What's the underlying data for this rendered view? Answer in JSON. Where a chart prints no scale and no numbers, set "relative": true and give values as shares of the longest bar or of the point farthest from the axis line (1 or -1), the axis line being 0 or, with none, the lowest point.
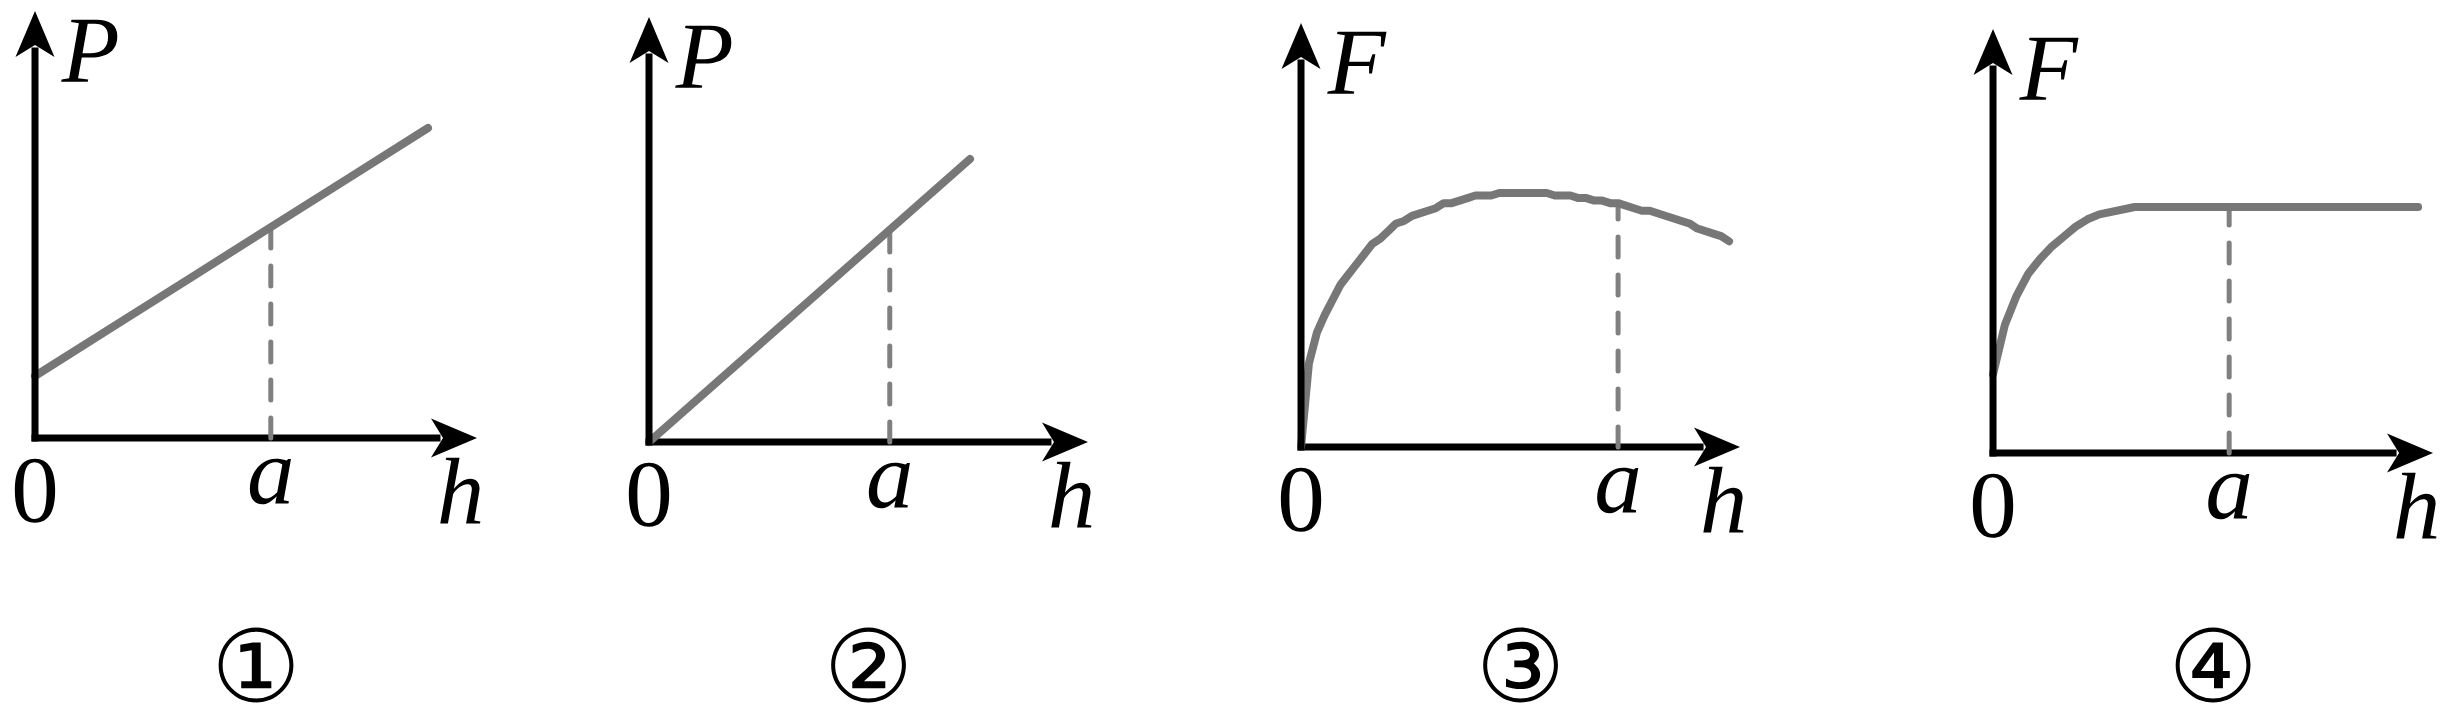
{
  "chart_data": [
    {
      "type": "line",
      "title": "①",
      "xlabel": "h",
      "ylabel": "P",
      "relative": true,
      "categories": [
        "0",
        null,
        null,
        "a",
        null,
        null
      ],
      "ref_lines": [
        {
          "axis": "x",
          "value": "a",
          "color": "#808080",
          "line_style": "dashed"
        }
      ],
      "color": "#777777",
      "values": [
        0.2,
        0.36,
        0.52,
        0.68,
        0.84,
        1
      ]
    },
    {
      "type": "line",
      "title": "②",
      "xlabel": "h",
      "ylabel": "P",
      "relative": true,
      "categories": [
        "0",
        null,
        null,
        "a",
        null
      ],
      "ref_lines": [
        {
          "axis": "x",
          "value": "a",
          "color": "#808080",
          "line_style": "dashed"
        }
      ],
      "color": "#777777",
      "values": [
        0,
        0.25,
        0.5,
        0.75,
        1
      ]
    },
    {
      "type": "line",
      "title": "③",
      "xlabel": "h",
      "ylabel": "F",
      "relative": true,
      "categories": [
        "0",
        null,
        null,
        null,
        null,
        null,
        null,
        null,
        null,
        null,
        null,
        null,
        null,
        null,
        null,
        null,
        null,
        null,
        null,
        null,
        null,
        null,
        null,
        null,
        null,
        null,
        null,
        null,
        null,
        null,
        null,
        null,
        null,
        null,
        null,
        null,
        null,
        null,
        null,
        null,
        "a",
        null,
        null,
        null,
        null,
        null,
        null,
        null,
        null,
        null,
        null,
        null,
        null,
        null,
        null
      ],
      "ref_lines": [
        {
          "axis": "x",
          "value": "a",
          "color": "#808080",
          "line_style": "dashed"
        }
      ],
      "color": "#777777",
      "values": [
        0,
        0.33,
        0.45,
        0.52,
        0.58,
        0.64,
        0.68,
        0.72,
        0.76,
        0.8,
        0.82,
        0.85,
        0.88,
        0.89,
        0.91,
        0.92,
        0.93,
        0.94,
        0.96,
        0.96,
        0.97,
        0.98,
        0.99,
        0.99,
        0.99,
        1,
        1,
        1,
        1,
        1,
        1,
        1,
        0.99,
        0.99,
        0.99,
        0.98,
        0.98,
        0.97,
        0.97,
        0.96,
        0.96,
        0.95,
        0.94,
        0.93,
        0.93,
        0.92,
        0.91,
        0.9,
        0.89,
        0.88,
        0.86,
        0.85,
        0.84,
        0.83,
        0.81
      ]
    },
    {
      "type": "line",
      "title": "④",
      "xlabel": "h",
      "ylabel": "F",
      "relative": true,
      "categories": [
        "0",
        null,
        null,
        null,
        null,
        null,
        null,
        null,
        null,
        null,
        null,
        null,
        null,
        null,
        null,
        null,
        null,
        null,
        null,
        null,
        "a",
        null,
        null,
        null,
        null,
        null,
        null,
        null,
        null,
        null,
        null,
        null,
        null,
        null,
        null,
        null,
        null
      ],
      "ref_lines": [
        {
          "axis": "x",
          "value": "a",
          "color": "#808080",
          "line_style": "dashed"
        }
      ],
      "color": "#777777",
      "values": [
        0.32,
        0.52,
        0.64,
        0.73,
        0.79,
        0.84,
        0.88,
        0.92,
        0.95,
        0.97,
        0.98,
        0.99,
        1,
        1,
        1,
        1,
        1,
        1,
        1,
        1,
        1,
        1,
        1,
        1,
        1,
        1,
        1,
        1,
        1,
        1,
        1,
        1,
        1,
        1,
        1,
        1,
        1
      ]
    }
  ]
}
